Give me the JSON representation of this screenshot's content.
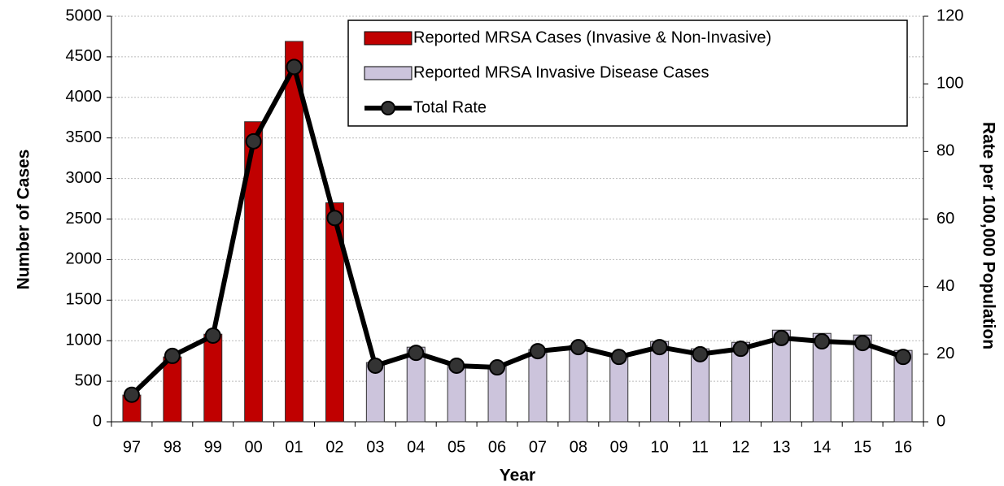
{
  "chart_data": {
    "type": "bar_line",
    "categories": [
      "97",
      "98",
      "99",
      "00",
      "01",
      "02",
      "03",
      "04",
      "05",
      "06",
      "07",
      "08",
      "09",
      "10",
      "11",
      "12",
      "13",
      "14",
      "15",
      "16"
    ],
    "series": [
      {
        "name": "Reported MRSA Cases (Invasive & Non-Invasive)",
        "type": "bar",
        "color": "#c00000",
        "values": [
          330,
          800,
          1080,
          3700,
          4690,
          2700,
          null,
          null,
          null,
          null,
          null,
          null,
          null,
          null,
          null,
          null,
          null,
          null,
          null,
          null
        ]
      },
      {
        "name": "Reported MRSA Invasive Disease Cases",
        "type": "bar",
        "color": "#ccc4dc",
        "values": [
          null,
          null,
          null,
          null,
          null,
          null,
          730,
          920,
          700,
          680,
          890,
          940,
          820,
          990,
          900,
          980,
          1130,
          1090,
          1070,
          880
        ]
      },
      {
        "name": "Total Rate",
        "type": "line",
        "color": "#000000",
        "axis": "y2",
        "values": [
          8,
          19.5,
          25.5,
          83,
          105,
          60.3,
          16.6,
          20.4,
          16.6,
          16.1,
          20.9,
          22.1,
          19.2,
          22.1,
          20,
          21.6,
          24.8,
          23.8,
          23.3,
          19.2
        ]
      }
    ],
    "xlabel": "Year",
    "ylabel": "Number of Cases",
    "y2label": "Rate per 100,000 Population",
    "ylim": [
      0,
      5000
    ],
    "yticks": [
      0,
      500,
      1000,
      1500,
      2000,
      2500,
      3000,
      3500,
      4000,
      4500,
      5000
    ],
    "y2lim": [
      0,
      120
    ],
    "y2ticks": [
      0,
      20,
      40,
      60,
      80,
      100,
      120
    ],
    "grid": true,
    "legend": "upper right"
  }
}
